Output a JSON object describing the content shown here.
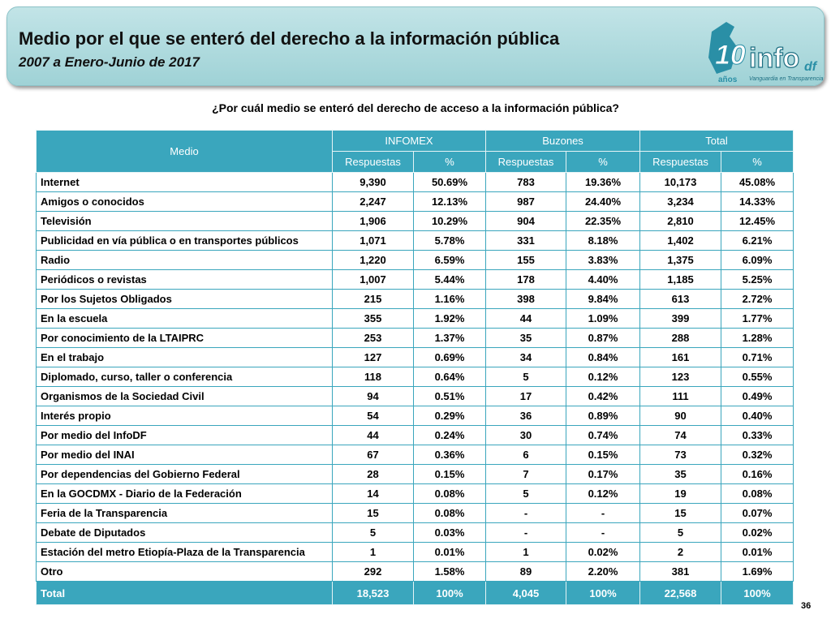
{
  "header": {
    "title": "Medio por el que se enteró del derecho a la información pública",
    "subtitle": "2007 a Enero-Junio de 2017"
  },
  "logo": {
    "number": "10",
    "text": "info",
    "suffix": "df",
    "years": "años",
    "tagline": "Vanguardia en Transparencia"
  },
  "question": "¿Por cuál medio se enteró del derecho de acceso a la información pública?",
  "table": {
    "corner": "Medio",
    "groups": [
      "INFOMEX",
      "Buzones",
      "Total"
    ],
    "subheaders": [
      "Respuestas",
      "%",
      "Respuestas",
      "%",
      "Respuestas",
      "%"
    ],
    "rows": [
      [
        "Internet",
        "9,390",
        "50.69%",
        "783",
        "19.36%",
        "10,173",
        "45.08%"
      ],
      [
        "Amigos o conocidos",
        "2,247",
        "12.13%",
        "987",
        "24.40%",
        "3,234",
        "14.33%"
      ],
      [
        "Televisión",
        "1,906",
        "10.29%",
        "904",
        "22.35%",
        "2,810",
        "12.45%"
      ],
      [
        "Publicidad en vía pública o en transportes públicos",
        "1,071",
        "5.78%",
        "331",
        "8.18%",
        "1,402",
        "6.21%"
      ],
      [
        "Radio",
        "1,220",
        "6.59%",
        "155",
        "3.83%",
        "1,375",
        "6.09%"
      ],
      [
        "Periódicos o revistas",
        "1,007",
        "5.44%",
        "178",
        "4.40%",
        "1,185",
        "5.25%"
      ],
      [
        "Por los Sujetos Obligados",
        "215",
        "1.16%",
        "398",
        "9.84%",
        "613",
        "2.72%"
      ],
      [
        "En la escuela",
        "355",
        "1.92%",
        "44",
        "1.09%",
        "399",
        "1.77%"
      ],
      [
        "Por conocimiento de la LTAIPRC",
        "253",
        "1.37%",
        "35",
        "0.87%",
        "288",
        "1.28%"
      ],
      [
        "En el trabajo",
        "127",
        "0.69%",
        "34",
        "0.84%",
        "161",
        "0.71%"
      ],
      [
        "Diplomado, curso, taller o conferencia",
        "118",
        "0.64%",
        "5",
        "0.12%",
        "123",
        "0.55%"
      ],
      [
        "Organismos de la Sociedad Civil",
        "94",
        "0.51%",
        "17",
        "0.42%",
        "111",
        "0.49%"
      ],
      [
        "Interés propio",
        "54",
        "0.29%",
        "36",
        "0.89%",
        "90",
        "0.40%"
      ],
      [
        "Por medio del InfoDF",
        "44",
        "0.24%",
        "30",
        "0.74%",
        "74",
        "0.33%"
      ],
      [
        "Por medio del INAI",
        "67",
        "0.36%",
        "6",
        "0.15%",
        "73",
        "0.32%"
      ],
      [
        "Por dependencias del Gobierno Federal",
        "28",
        "0.15%",
        "7",
        "0.17%",
        "35",
        "0.16%"
      ],
      [
        "En la GOCDMX - Diario de la Federación",
        "14",
        "0.08%",
        "5",
        "0.12%",
        "19",
        "0.08%"
      ],
      [
        "Feria de la Transparencia",
        "15",
        "0.08%",
        "-",
        "-",
        "15",
        "0.07%"
      ],
      [
        "Debate de Diputados",
        "5",
        "0.03%",
        "-",
        "-",
        "5",
        "0.02%"
      ],
      [
        "Estación del metro Etiopía-Plaza de la Transparencia",
        "1",
        "0.01%",
        "1",
        "0.02%",
        "2",
        "0.01%"
      ],
      [
        "Otro",
        "292",
        "1.58%",
        "89",
        "2.20%",
        "381",
        "1.69%"
      ]
    ],
    "total": [
      "Total",
      "18,523",
      "100%",
      "4,045",
      "100%",
      "22,568",
      "100%"
    ]
  },
  "page_number": "36"
}
